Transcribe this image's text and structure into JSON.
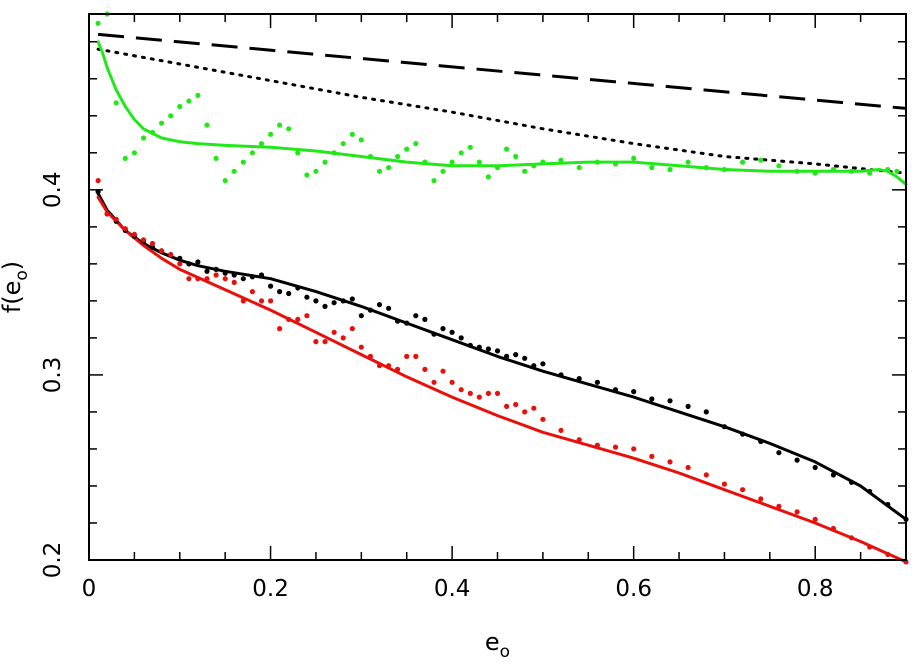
{
  "chart_data": {
    "type": "scatter",
    "title": "",
    "xlabel": "e",
    "xlabel_sub": "o",
    "ylabel_prefix": "f(e",
    "ylabel_sub": "o",
    "ylabel_suffix": ")",
    "xlim": [
      0,
      0.9
    ],
    "ylim": [
      0.2,
      0.495
    ],
    "xticks": [
      0,
      0.2,
      0.4,
      0.6,
      0.8
    ],
    "xtick_labels": [
      "0",
      "0.2",
      "0.4",
      "0.6",
      "0.8"
    ],
    "yticks": [
      0.2,
      0.3,
      0.4
    ],
    "ytick_labels": [
      "0.2",
      "0.3",
      "0.4"
    ],
    "grid": false,
    "legend": "none",
    "colors": {
      "black": "#000000",
      "red": "#e8100c",
      "green": "#22e81a"
    },
    "series": [
      {
        "style": "dashed-line",
        "color": "#000000",
        "x": [
          0.01,
          0.9
        ],
        "y": [
          0.484,
          0.444
        ]
      },
      {
        "style": "dotted-line",
        "color": "#000000",
        "x": [
          0.01,
          0.1,
          0.2,
          0.3,
          0.4,
          0.5,
          0.6,
          0.7,
          0.8,
          0.9
        ],
        "y": [
          0.476,
          0.468,
          0.459,
          0.45,
          0.442,
          0.433,
          0.425,
          0.418,
          0.414,
          0.409
        ]
      },
      {
        "style": "line",
        "color": "#22e81a",
        "x": [
          0.01,
          0.015,
          0.02,
          0.03,
          0.04,
          0.05,
          0.06,
          0.08,
          0.1,
          0.12,
          0.15,
          0.2,
          0.25,
          0.3,
          0.35,
          0.4,
          0.45,
          0.5,
          0.55,
          0.6,
          0.65,
          0.7,
          0.75,
          0.8,
          0.85,
          0.87,
          0.88,
          0.89,
          0.9
        ],
        "y": [
          0.48,
          0.474,
          0.466,
          0.454,
          0.445,
          0.438,
          0.433,
          0.428,
          0.426,
          0.425,
          0.424,
          0.423,
          0.421,
          0.418,
          0.415,
          0.413,
          0.413,
          0.414,
          0.415,
          0.415,
          0.413,
          0.411,
          0.41,
          0.41,
          0.41,
          0.411,
          0.41,
          0.407,
          0.403
        ]
      },
      {
        "style": "line",
        "color": "#000000",
        "x": [
          0.01,
          0.02,
          0.04,
          0.06,
          0.08,
          0.1,
          0.12,
          0.15,
          0.2,
          0.25,
          0.3,
          0.35,
          0.4,
          0.45,
          0.5,
          0.55,
          0.6,
          0.65,
          0.7,
          0.75,
          0.8,
          0.85,
          0.9
        ],
        "y": [
          0.398,
          0.389,
          0.378,
          0.371,
          0.366,
          0.362,
          0.359,
          0.356,
          0.352,
          0.345,
          0.337,
          0.328,
          0.319,
          0.31,
          0.302,
          0.295,
          0.288,
          0.28,
          0.272,
          0.263,
          0.253,
          0.24,
          0.222
        ]
      },
      {
        "style": "line",
        "color": "#e8100c",
        "x": [
          0.01,
          0.02,
          0.04,
          0.06,
          0.08,
          0.1,
          0.15,
          0.2,
          0.25,
          0.3,
          0.35,
          0.4,
          0.45,
          0.5,
          0.55,
          0.6,
          0.65,
          0.7,
          0.75,
          0.8,
          0.85,
          0.9
        ],
        "y": [
          0.396,
          0.388,
          0.378,
          0.37,
          0.363,
          0.357,
          0.346,
          0.335,
          0.323,
          0.311,
          0.299,
          0.288,
          0.278,
          0.269,
          0.262,
          0.255,
          0.247,
          0.238,
          0.229,
          0.22,
          0.21,
          0.199
        ]
      },
      {
        "style": "dots",
        "color": "#22e81a",
        "x": [
          0.01,
          0.02,
          0.03,
          0.04,
          0.05,
          0.06,
          0.07,
          0.08,
          0.09,
          0.1,
          0.11,
          0.12,
          0.13,
          0.14,
          0.15,
          0.16,
          0.17,
          0.18,
          0.19,
          0.2,
          0.21,
          0.22,
          0.23,
          0.24,
          0.25,
          0.26,
          0.27,
          0.28,
          0.29,
          0.3,
          0.31,
          0.32,
          0.33,
          0.34,
          0.35,
          0.36,
          0.37,
          0.38,
          0.39,
          0.4,
          0.41,
          0.42,
          0.43,
          0.44,
          0.45,
          0.46,
          0.47,
          0.48,
          0.49,
          0.5,
          0.52,
          0.54,
          0.56,
          0.58,
          0.6,
          0.62,
          0.64,
          0.66,
          0.68,
          0.7,
          0.72,
          0.74,
          0.76,
          0.78,
          0.8,
          0.82,
          0.84,
          0.86,
          0.88,
          0.89
        ],
        "y": [
          0.49,
          0.495,
          0.447,
          0.417,
          0.42,
          0.428,
          0.431,
          0.436,
          0.44,
          0.445,
          0.448,
          0.451,
          0.435,
          0.417,
          0.405,
          0.41,
          0.415,
          0.42,
          0.425,
          0.43,
          0.435,
          0.433,
          0.42,
          0.408,
          0.41,
          0.415,
          0.42,
          0.425,
          0.43,
          0.427,
          0.418,
          0.41,
          0.412,
          0.418,
          0.422,
          0.425,
          0.415,
          0.405,
          0.41,
          0.415,
          0.42,
          0.423,
          0.415,
          0.407,
          0.412,
          0.422,
          0.418,
          0.41,
          0.413,
          0.415,
          0.416,
          0.412,
          0.415,
          0.414,
          0.417,
          0.412,
          0.411,
          0.415,
          0.412,
          0.411,
          0.415,
          0.416,
          0.413,
          0.41,
          0.409,
          0.411,
          0.41,
          0.409,
          0.411,
          0.41
        ]
      },
      {
        "style": "dots",
        "color": "#000000",
        "x": [
          0.01,
          0.02,
          0.03,
          0.04,
          0.05,
          0.06,
          0.07,
          0.08,
          0.09,
          0.1,
          0.11,
          0.12,
          0.13,
          0.14,
          0.15,
          0.16,
          0.17,
          0.18,
          0.19,
          0.2,
          0.21,
          0.22,
          0.23,
          0.24,
          0.25,
          0.26,
          0.27,
          0.28,
          0.29,
          0.3,
          0.31,
          0.32,
          0.33,
          0.34,
          0.35,
          0.36,
          0.37,
          0.38,
          0.39,
          0.4,
          0.41,
          0.42,
          0.43,
          0.44,
          0.45,
          0.46,
          0.47,
          0.48,
          0.49,
          0.5,
          0.52,
          0.54,
          0.56,
          0.58,
          0.6,
          0.62,
          0.64,
          0.66,
          0.68,
          0.7,
          0.72,
          0.74,
          0.76,
          0.78,
          0.8,
          0.82,
          0.84,
          0.86,
          0.88,
          0.9
        ],
        "y": [
          0.399,
          0.387,
          0.383,
          0.378,
          0.375,
          0.372,
          0.369,
          0.367,
          0.365,
          0.363,
          0.36,
          0.361,
          0.356,
          0.357,
          0.355,
          0.354,
          0.352,
          0.353,
          0.354,
          0.348,
          0.345,
          0.344,
          0.347,
          0.342,
          0.34,
          0.337,
          0.339,
          0.34,
          0.341,
          0.332,
          0.335,
          0.338,
          0.336,
          0.329,
          0.328,
          0.332,
          0.33,
          0.322,
          0.325,
          0.323,
          0.32,
          0.316,
          0.315,
          0.314,
          0.313,
          0.31,
          0.311,
          0.309,
          0.305,
          0.306,
          0.3,
          0.298,
          0.296,
          0.292,
          0.291,
          0.287,
          0.286,
          0.283,
          0.28,
          0.272,
          0.268,
          0.264,
          0.258,
          0.254,
          0.25,
          0.246,
          0.242,
          0.237,
          0.23,
          0.222
        ]
      },
      {
        "style": "dots",
        "color": "#e8100c",
        "x": [
          0.01,
          0.02,
          0.03,
          0.04,
          0.05,
          0.06,
          0.07,
          0.08,
          0.09,
          0.1,
          0.11,
          0.12,
          0.13,
          0.14,
          0.15,
          0.16,
          0.17,
          0.18,
          0.19,
          0.2,
          0.21,
          0.22,
          0.23,
          0.24,
          0.25,
          0.26,
          0.27,
          0.28,
          0.29,
          0.3,
          0.31,
          0.32,
          0.33,
          0.34,
          0.35,
          0.36,
          0.37,
          0.38,
          0.39,
          0.4,
          0.41,
          0.42,
          0.43,
          0.44,
          0.45,
          0.46,
          0.47,
          0.48,
          0.49,
          0.5,
          0.52,
          0.54,
          0.56,
          0.58,
          0.6,
          0.62,
          0.64,
          0.66,
          0.68,
          0.7,
          0.72,
          0.74,
          0.76,
          0.78,
          0.8,
          0.82,
          0.84,
          0.86,
          0.88,
          0.9
        ],
        "y": [
          0.405,
          0.387,
          0.384,
          0.379,
          0.376,
          0.373,
          0.371,
          0.367,
          0.365,
          0.36,
          0.352,
          0.352,
          0.352,
          0.354,
          0.352,
          0.35,
          0.34,
          0.345,
          0.34,
          0.34,
          0.325,
          0.33,
          0.33,
          0.332,
          0.318,
          0.318,
          0.323,
          0.32,
          0.325,
          0.315,
          0.31,
          0.305,
          0.305,
          0.303,
          0.31,
          0.31,
          0.303,
          0.296,
          0.302,
          0.296,
          0.292,
          0.29,
          0.288,
          0.29,
          0.29,
          0.283,
          0.284,
          0.28,
          0.282,
          0.276,
          0.27,
          0.265,
          0.262,
          0.261,
          0.26,
          0.256,
          0.253,
          0.25,
          0.246,
          0.241,
          0.238,
          0.233,
          0.229,
          0.226,
          0.222,
          0.217,
          0.212,
          0.207,
          0.203,
          0.199
        ]
      }
    ]
  }
}
